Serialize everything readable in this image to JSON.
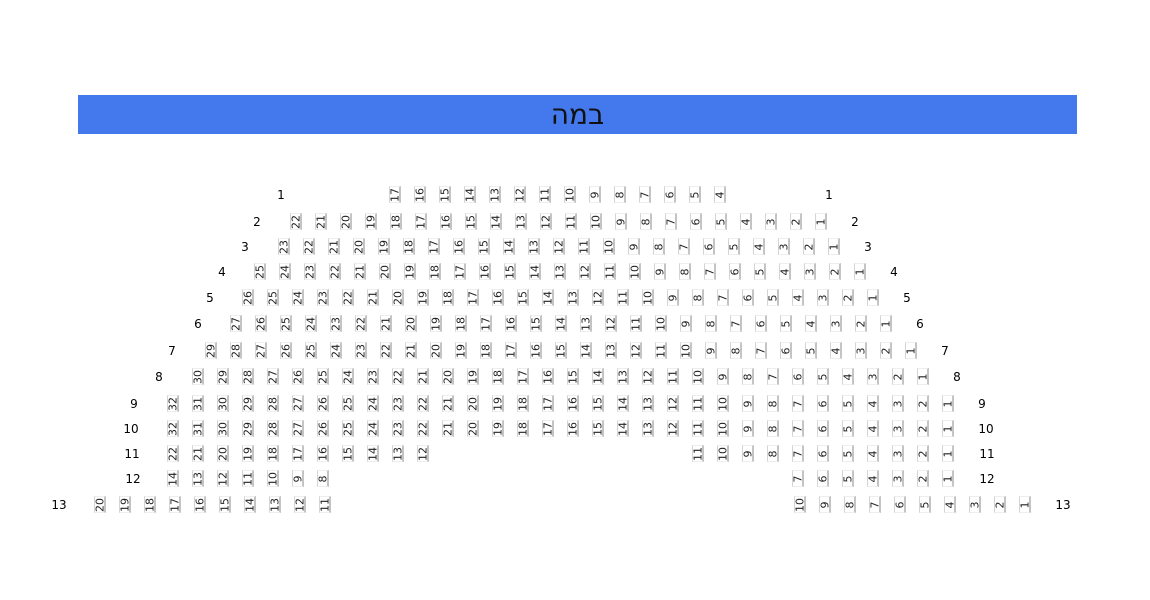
{
  "stage": {
    "label": "במה",
    "color": "#4479ee"
  },
  "rows": [
    {
      "label": "1",
      "segments": [
        [
          17,
          16,
          15,
          14,
          13,
          12,
          11,
          10,
          9,
          8,
          7,
          6,
          5,
          4
        ]
      ]
    },
    {
      "label": "2",
      "segments": [
        [
          22,
          21,
          20,
          19,
          18,
          17,
          16,
          15,
          14,
          13,
          12,
          11,
          10,
          9,
          8,
          7,
          6,
          5,
          4,
          3,
          2,
          1
        ]
      ]
    },
    {
      "label": "3",
      "segments": [
        [
          23,
          22,
          21,
          20,
          19,
          18,
          17,
          16,
          15,
          14,
          13,
          12,
          11,
          10,
          9,
          8,
          7,
          6,
          5,
          4,
          3,
          2,
          1
        ]
      ]
    },
    {
      "label": "4",
      "segments": [
        [
          25,
          24,
          23,
          22,
          21,
          20,
          19,
          18,
          17,
          16,
          15,
          14,
          13,
          12,
          11,
          10,
          9,
          8,
          7,
          6,
          5,
          4,
          3,
          2,
          1
        ]
      ]
    },
    {
      "label": "5",
      "segments": [
        [
          26,
          25,
          24,
          23,
          22,
          21,
          20,
          19,
          18,
          17,
          16,
          15,
          14,
          13,
          12,
          11,
          10,
          9,
          8,
          7,
          6,
          5,
          4,
          3,
          2,
          1
        ]
      ]
    },
    {
      "label": "6",
      "segments": [
        [
          27,
          26,
          25,
          24,
          23,
          22,
          21,
          20,
          19,
          18,
          17,
          16,
          15,
          14,
          13,
          12,
          11,
          10,
          9,
          8,
          7,
          6,
          5,
          4,
          3,
          2,
          1
        ]
      ]
    },
    {
      "label": "7",
      "segments": [
        [
          29,
          28,
          27,
          26,
          25,
          24,
          23,
          22,
          21,
          20,
          19,
          18,
          17,
          16,
          15,
          14,
          13,
          12,
          11,
          10,
          9,
          8,
          7,
          6,
          5,
          4,
          3,
          2,
          1
        ]
      ]
    },
    {
      "label": "8",
      "segments": [
        [
          30,
          29,
          28,
          27,
          26,
          25,
          24,
          23,
          22,
          21,
          20,
          19,
          18,
          17,
          16,
          15,
          14,
          13,
          12,
          11,
          10,
          9,
          8,
          7,
          6,
          5,
          4,
          3,
          2,
          1
        ]
      ]
    },
    {
      "label": "9",
      "segments": [
        [
          32,
          31,
          30,
          29,
          28,
          27,
          26,
          25,
          24,
          23,
          22,
          21,
          20,
          19,
          18,
          17,
          16,
          15,
          14,
          13,
          12,
          11,
          10,
          9,
          8,
          7,
          6,
          5,
          4,
          3,
          2,
          1
        ]
      ]
    },
    {
      "label": "10",
      "segments": [
        [
          32,
          31,
          30,
          29,
          28,
          27,
          26,
          25,
          24,
          23,
          22,
          21,
          20,
          19,
          18,
          17,
          16,
          15,
          14,
          13,
          12,
          11,
          10,
          9,
          8,
          7,
          6,
          5,
          4,
          3,
          2,
          1
        ]
      ]
    },
    {
      "label": "11",
      "segments": [
        [
          22,
          21,
          20,
          19,
          18,
          17,
          16,
          15,
          14,
          13,
          12
        ],
        [
          11,
          10,
          9,
          8,
          7,
          6,
          5,
          4,
          3,
          2,
          1
        ]
      ]
    },
    {
      "label": "12",
      "segments": [
        [
          14,
          13,
          12,
          11,
          10,
          9,
          8
        ],
        [
          7,
          6,
          5,
          4,
          3,
          2,
          1
        ]
      ]
    },
    {
      "label": "13",
      "segments": [
        [
          20,
          19,
          18,
          17,
          16,
          15,
          14,
          13,
          12,
          11
        ],
        [
          10,
          9,
          8,
          7,
          6,
          5,
          4,
          3,
          2,
          1
        ]
      ]
    }
  ]
}
